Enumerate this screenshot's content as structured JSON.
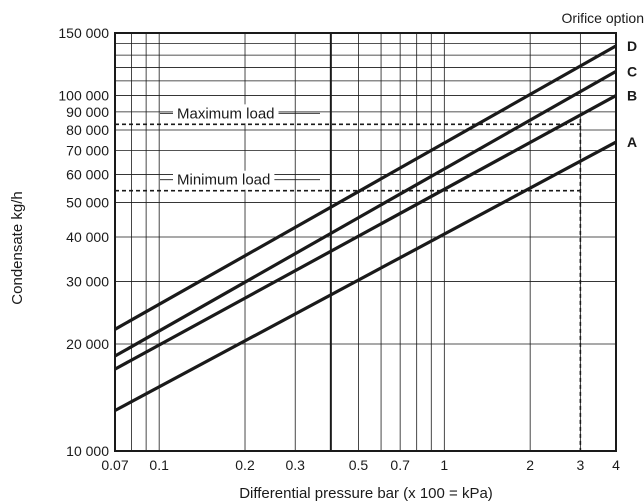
{
  "chart_data": {
    "type": "line",
    "title": "",
    "xlabel": "Differential pressure bar (x 100 = kPa)",
    "ylabel": "Condensate kg/h",
    "x_scale": "log",
    "y_scale": "log",
    "xlim": [
      0.07,
      4
    ],
    "ylim": [
      10000,
      150000
    ],
    "grid": true,
    "x_ticks": [
      0.07,
      0.1,
      0.2,
      0.3,
      0.5,
      0.7,
      1,
      2,
      3,
      4
    ],
    "x_tick_labels": [
      "0.07",
      "0.1",
      "0.2",
      "0.3",
      "0.5",
      "0.7",
      "1",
      "2",
      "3",
      "4"
    ],
    "y_ticks": [
      10000,
      20000,
      30000,
      40000,
      50000,
      60000,
      70000,
      80000,
      90000,
      100000,
      150000
    ],
    "y_tick_labels": [
      "10 000",
      "20 000",
      "30 000",
      "40 000",
      "50 000",
      "60 000",
      "70 000",
      "80 000",
      "90 000",
      "100 000",
      "150 000"
    ],
    "series_legend_title": "Orifice option",
    "series": [
      {
        "name": "A",
        "x": [
          0.07,
          4
        ],
        "y": [
          13000,
          74000
        ]
      },
      {
        "name": "B",
        "x": [
          0.07,
          4
        ],
        "y": [
          17000,
          100000
        ]
      },
      {
        "name": "C",
        "x": [
          0.07,
          4
        ],
        "y": [
          18500,
          117000
        ]
      },
      {
        "name": "D",
        "x": [
          0.07,
          4
        ],
        "y": [
          22000,
          138000
        ]
      }
    ],
    "reference_lines": [
      {
        "label": "Maximum load",
        "y": 83000,
        "x_end": 3
      },
      {
        "label": "Minimum load",
        "y": 54000,
        "x_end": 3
      }
    ],
    "vertical_reference": {
      "x": 3,
      "y_end": 86000
    }
  }
}
